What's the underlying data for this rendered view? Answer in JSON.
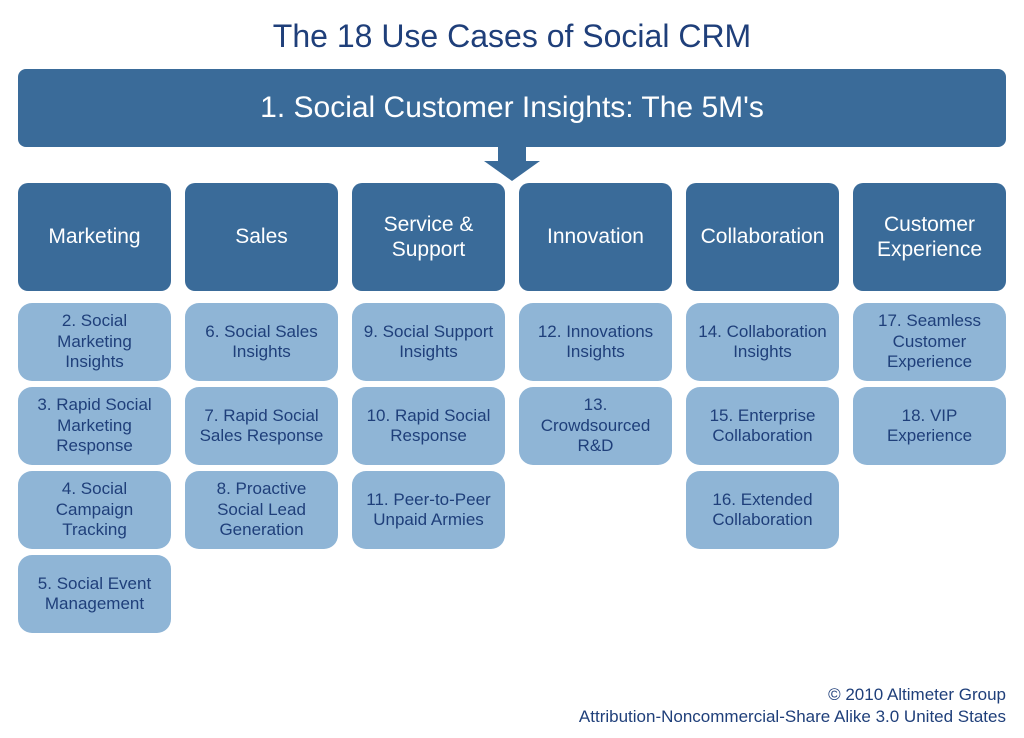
{
  "colors": {
    "title_text": "#1f3f7a",
    "banner_bg": "#3a6b99",
    "banner_text": "#ffffff",
    "arrow_fill": "#3a6b99",
    "col_head_bg": "#3a6b99",
    "col_head_text": "#ffffff",
    "item_bg": "#8fb5d6",
    "item_text": "#1f3f7a",
    "footer_text": "#1f3f7a",
    "background": "#ffffff"
  },
  "title": "The 18 Use Cases of Social CRM",
  "banner": "1. Social Customer Insights: The 5M's",
  "columns": [
    {
      "header": "Marketing",
      "items": [
        "2. Social Marketing Insights",
        "3. Rapid Social Marketing Response",
        "4. Social Campaign Tracking",
        "5. Social Event Management"
      ]
    },
    {
      "header": "Sales",
      "items": [
        "6. Social Sales Insights",
        "7. Rapid Social Sales Response",
        "8. Proactive Social Lead Generation"
      ]
    },
    {
      "header": "Service & Support",
      "items": [
        "9. Social Support Insights",
        "10. Rapid Social Response",
        "11. Peer-to-Peer Unpaid Armies"
      ]
    },
    {
      "header": "Innovation",
      "items": [
        "12. Innovations Insights",
        "13. Crowdsourced R&D"
      ]
    },
    {
      "header": "Collaboration",
      "items": [
        "14. Collaboration Insights",
        "15. Enterprise Collaboration",
        "16. Extended Collaboration"
      ]
    },
    {
      "header": "Customer Experience",
      "items": [
        "17. Seamless Customer Experience",
        "18. VIP Experience"
      ]
    }
  ],
  "footer": {
    "line1": "© 2010 Altimeter Group",
    "line2": "Attribution-Noncommercial-Share Alike 3.0 United States"
  }
}
